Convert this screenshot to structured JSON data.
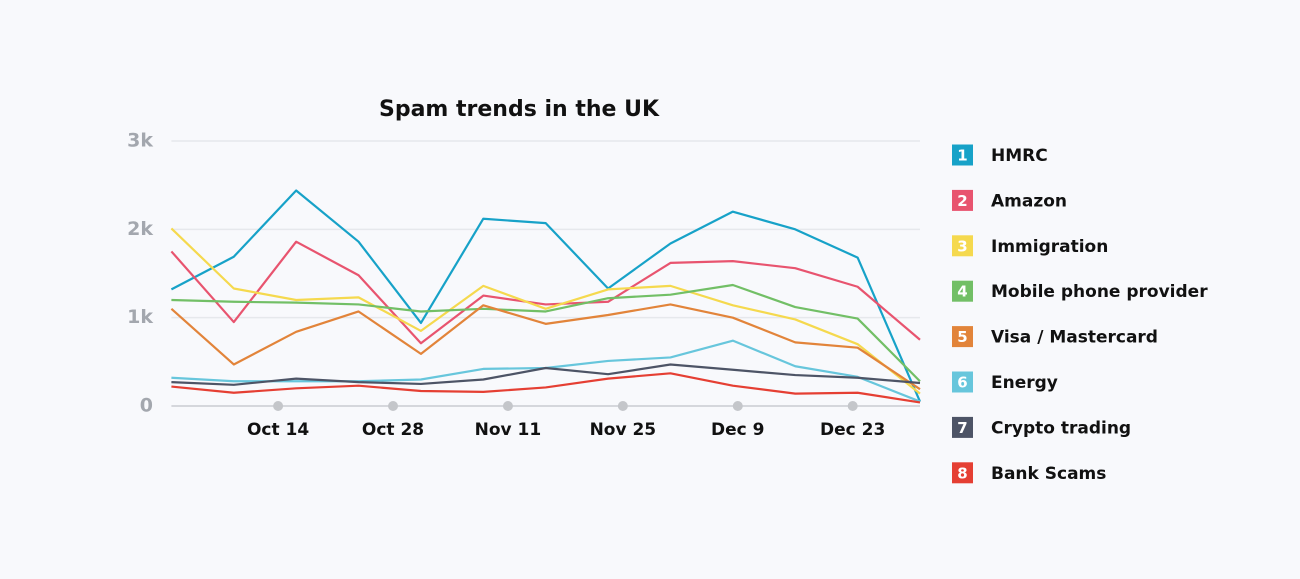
{
  "chart_data": {
    "type": "line",
    "title": "Spam trends in the UK",
    "x": [
      0,
      7.6,
      15.2,
      22.8,
      30.4,
      38,
      45.6,
      53.2,
      60.8,
      68.4,
      76,
      83.6,
      91.2
    ],
    "xlim": [
      0,
      91.2
    ],
    "xticks": [
      {
        "value": 13,
        "label": "Oct 14"
      },
      {
        "value": 27,
        "label": "Oct 28"
      },
      {
        "value": 41,
        "label": "Nov 11"
      },
      {
        "value": 55,
        "label": "Nov 25"
      },
      {
        "value": 69,
        "label": "Dec 9"
      },
      {
        "value": 83,
        "label": "Dec 23"
      }
    ],
    "ylim": [
      0,
      3000
    ],
    "yticks": [
      0,
      {
        "value": 1000,
        "label": "1k"
      },
      {
        "value": 2000,
        "label": "2k"
      },
      {
        "value": 3000,
        "label": "3k"
      }
    ],
    "grid": true,
    "legend": "right",
    "series": [
      {
        "number": 1,
        "name": "HMRC",
        "color": "#17a2c8",
        "values": [
          1320,
          1690,
          2440,
          1860,
          940,
          2120,
          2070,
          1330,
          1840,
          2200,
          2000,
          1680,
          50
        ]
      },
      {
        "number": 2,
        "name": "Amazon",
        "color": "#e8546f",
        "values": [
          1750,
          950,
          1860,
          1480,
          710,
          1250,
          1150,
          1180,
          1620,
          1640,
          1560,
          1350,
          750
        ]
      },
      {
        "number": 3,
        "name": "Immigration",
        "color": "#f5d94e",
        "values": [
          2010,
          1330,
          1200,
          1230,
          850,
          1360,
          1100,
          1320,
          1360,
          1140,
          980,
          700,
          140
        ]
      },
      {
        "number": 4,
        "name": "Mobile phone provider",
        "color": "#72bf66",
        "values": [
          1200,
          1180,
          1170,
          1150,
          1070,
          1100,
          1070,
          1220,
          1260,
          1370,
          1120,
          990,
          280
        ]
      },
      {
        "number": 5,
        "name": "Visa / Mastercard",
        "color": "#e2843a",
        "values": [
          1100,
          470,
          840,
          1070,
          590,
          1140,
          930,
          1030,
          1150,
          1000,
          720,
          660,
          190
        ]
      },
      {
        "number": 6,
        "name": "Energy",
        "color": "#67c6dc",
        "values": [
          320,
          280,
          280,
          280,
          300,
          420,
          430,
          510,
          550,
          740,
          450,
          330,
          50
        ]
      },
      {
        "number": 7,
        "name": "Crypto trading",
        "color": "#4d5466",
        "values": [
          270,
          240,
          310,
          270,
          250,
          300,
          430,
          360,
          470,
          410,
          350,
          320,
          260
        ]
      },
      {
        "number": 8,
        "name": "Bank Scams",
        "color": "#e53f33",
        "values": [
          220,
          150,
          200,
          230,
          170,
          160,
          210,
          310,
          370,
          230,
          140,
          150,
          40
        ]
      }
    ]
  }
}
